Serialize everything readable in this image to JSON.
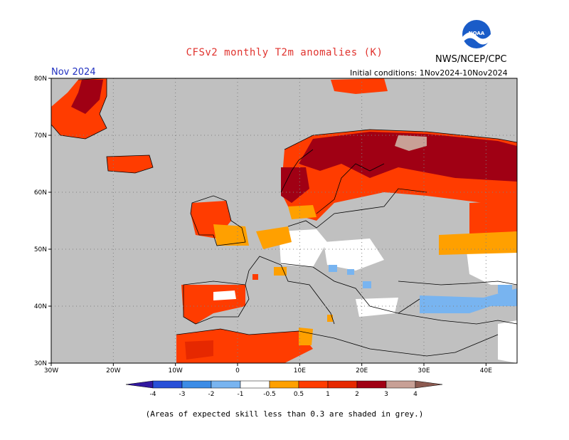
{
  "title": "CFSv2 monthly T2m anomalies (K)",
  "org_label": "NWS/NCEP/CPC",
  "valid_label": "Nov 2024",
  "init_label": "Initial conditions:  1Nov2024-10Nov2024",
  "footnote": "(Areas of expected skill less than 0.3 are shaded in grey.)",
  "logo": {
    "text": "NOAA",
    "icon": "noaa-logo"
  },
  "map": {
    "lon_range": [
      -30,
      45
    ],
    "lat_range": [
      30,
      80
    ],
    "lon_ticks": [
      {
        "value": -30,
        "label": "30W"
      },
      {
        "value": -20,
        "label": "20W"
      },
      {
        "value": -10,
        "label": "10W"
      },
      {
        "value": 0,
        "label": "0"
      },
      {
        "value": 10,
        "label": "10E"
      },
      {
        "value": 20,
        "label": "20E"
      },
      {
        "value": 30,
        "label": "30E"
      },
      {
        "value": 40,
        "label": "40E"
      }
    ],
    "lat_ticks": [
      {
        "value": 30,
        "label": "30N"
      },
      {
        "value": 40,
        "label": "40N"
      },
      {
        "value": 50,
        "label": "50N"
      },
      {
        "value": 60,
        "label": "60N"
      },
      {
        "value": 70,
        "label": "70N"
      },
      {
        "value": 80,
        "label": "80N"
      }
    ],
    "grey_color": "#c0c0c0",
    "land_fill": "#ffffff"
  },
  "legend": {
    "colors": [
      "#3218a0",
      "#2850d8",
      "#3c8ce6",
      "#78b4f0",
      "#ffffff",
      "#ffa000",
      "#ff3c00",
      "#e62800",
      "#a00014",
      "#c8a096",
      "#8c5a50"
    ],
    "labels": [
      "-4",
      "-3",
      "-2",
      "-1",
      "-0.5",
      "0.5",
      "1",
      "2",
      "3",
      "4"
    ]
  }
}
